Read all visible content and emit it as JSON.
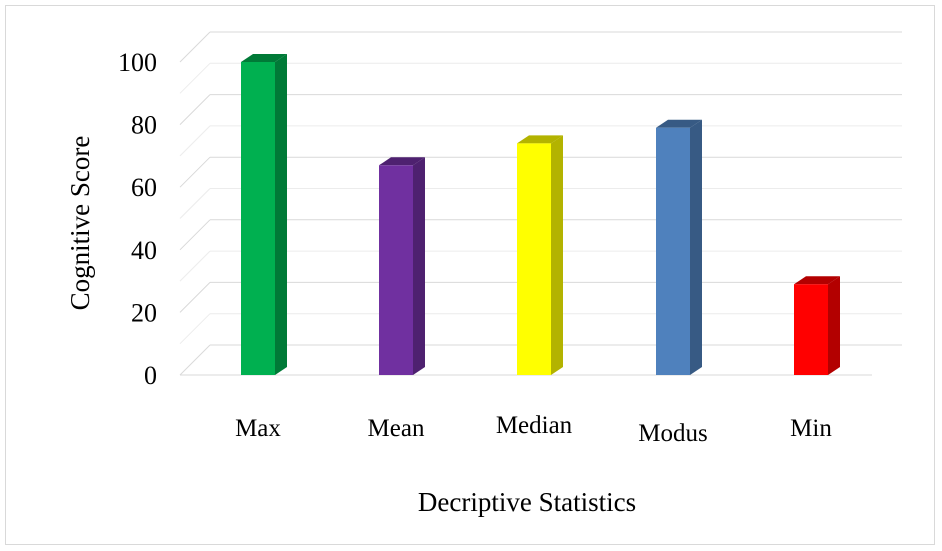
{
  "chart_data": {
    "type": "bar",
    "categories": [
      "Max",
      "Mean",
      "Median",
      "Modus",
      "Min"
    ],
    "values": [
      100,
      67,
      74,
      79,
      29
    ],
    "colors": {
      "Max": "#00b050",
      "Mean": "#7030a0",
      "Median": "#ffff00",
      "Modus": "#4f81bd",
      "Min": "#ff0000"
    },
    "side_colors": {
      "Max": "#007a37",
      "Mean": "#4e2170",
      "Median": "#b3b300",
      "Modus": "#375a84",
      "Min": "#b30000"
    },
    "xlabel": "Decriptive Statistics",
    "ylabel": "Cognitive Score",
    "ylim": [
      0,
      100
    ],
    "yticks": [
      "0",
      "20",
      "40",
      "60",
      "80",
      "100"
    ],
    "style": "3d-column",
    "grid": true,
    "legend": "none"
  }
}
